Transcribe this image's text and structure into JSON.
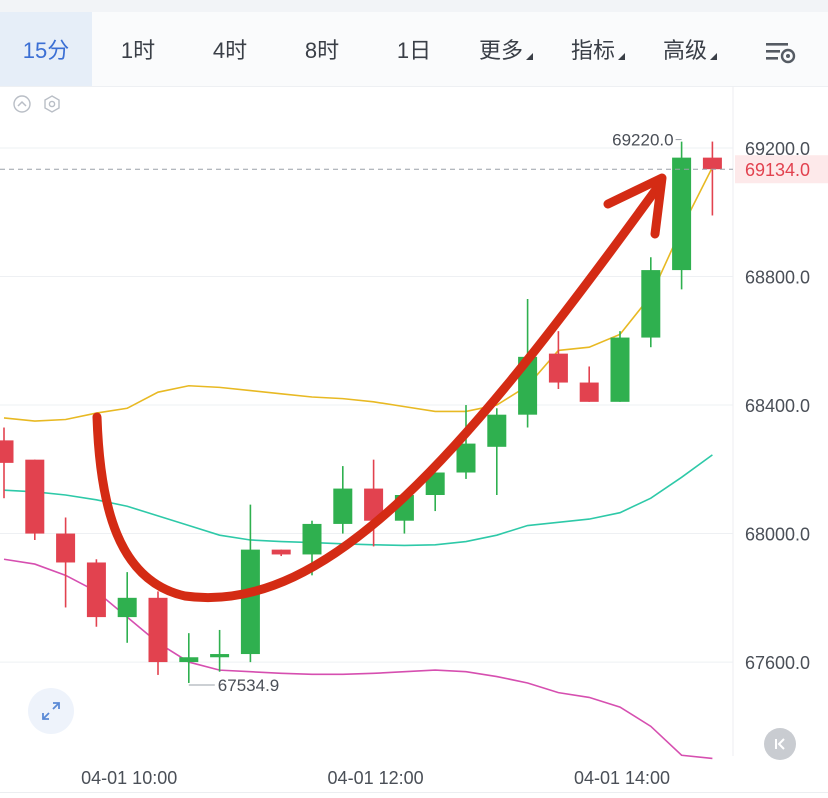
{
  "toolbar": {
    "tabs": [
      {
        "label": "15分",
        "active": true,
        "dropdown": false
      },
      {
        "label": "1时",
        "active": false,
        "dropdown": false
      },
      {
        "label": "4时",
        "active": false,
        "dropdown": false
      },
      {
        "label": "8时",
        "active": false,
        "dropdown": false
      },
      {
        "label": "1日",
        "active": false,
        "dropdown": false
      },
      {
        "label": "更多",
        "active": false,
        "dropdown": true
      },
      {
        "label": "指标",
        "active": false,
        "dropdown": true
      },
      {
        "label": "高级",
        "active": false,
        "dropdown": true
      }
    ],
    "settings_icon": "chart-settings-icon"
  },
  "colors": {
    "accent": "#3b6fd4",
    "up": "#2fb04f",
    "down": "#e2424f",
    "ma_yellow": "#e8b923",
    "ma_teal": "#2ec9a8",
    "ma_pink": "#d64fb0",
    "arrow": "#d42b14",
    "last_price": "#e2424f"
  },
  "chart_data": {
    "type": "candlestick",
    "ylim": [
      67300,
      69420
    ],
    "y_ticks": [
      "69200.0",
      "68800.0",
      "68400.0",
      "68000.0",
      "67600.0"
    ],
    "y_tick_values": [
      69200,
      68800,
      68400,
      68000,
      67600
    ],
    "x_ticks": [
      "04-01 10:00",
      "04-01 12:00",
      "04-01 14:00"
    ],
    "x_tick_index": [
      4,
      12,
      20
    ],
    "candles": [
      {
        "o": 68290,
        "h": 68330,
        "l": 68110,
        "c": 68220
      },
      {
        "o": 68230,
        "h": 68230,
        "l": 67980,
        "c": 68000
      },
      {
        "o": 68000,
        "h": 68050,
        "l": 67770,
        "c": 67910
      },
      {
        "o": 67910,
        "h": 67920,
        "l": 67710,
        "c": 67740
      },
      {
        "o": 67740,
        "h": 67880,
        "l": 67660,
        "c": 67800
      },
      {
        "o": 67800,
        "h": 67820,
        "l": 67560,
        "c": 67600
      },
      {
        "o": 67600,
        "h": 67690,
        "l": 67535,
        "c": 67615
      },
      {
        "o": 67615,
        "h": 67700,
        "l": 67570,
        "c": 67625
      },
      {
        "o": 67625,
        "h": 68090,
        "l": 67600,
        "c": 67950
      },
      {
        "o": 67950,
        "h": 67950,
        "l": 67930,
        "c": 67935
      },
      {
        "o": 67935,
        "h": 68040,
        "l": 67870,
        "c": 68030
      },
      {
        "o": 68030,
        "h": 68210,
        "l": 68000,
        "c": 68140
      },
      {
        "o": 68140,
        "h": 68230,
        "l": 67960,
        "c": 68040
      },
      {
        "o": 68040,
        "h": 68130,
        "l": 68000,
        "c": 68120
      },
      {
        "o": 68120,
        "h": 68190,
        "l": 68070,
        "c": 68190
      },
      {
        "o": 68190,
        "h": 68400,
        "l": 68170,
        "c": 68280
      },
      {
        "o": 68270,
        "h": 68390,
        "l": 68120,
        "c": 68370
      },
      {
        "o": 68370,
        "h": 68730,
        "l": 68330,
        "c": 68550
      },
      {
        "o": 68560,
        "h": 68630,
        "l": 68450,
        "c": 68470
      },
      {
        "o": 68470,
        "h": 68520,
        "l": 68410,
        "c": 68410
      },
      {
        "o": 68410,
        "h": 68630,
        "l": 68410,
        "c": 68610
      },
      {
        "o": 68610,
        "h": 68860,
        "l": 68580,
        "c": 68820
      },
      {
        "o": 68820,
        "h": 69220,
        "l": 68760,
        "c": 69170
      },
      {
        "o": 69170,
        "h": 69220,
        "l": 68990,
        "c": 69134
      }
    ],
    "ma_upper": [
      68360,
      68350,
      68355,
      68375,
      68390,
      68440,
      68460,
      68455,
      68445,
      68435,
      68425,
      68420,
      68410,
      68395,
      68380,
      68380,
      68400,
      68460,
      68570,
      68580,
      68620,
      68740,
      68950,
      69140
    ],
    "ma_middle": [
      68135,
      68130,
      68120,
      68105,
      68085,
      68055,
      68025,
      67995,
      67980,
      67975,
      67972,
      67968,
      67965,
      67963,
      67965,
      67975,
      67995,
      68025,
      68035,
      68045,
      68065,
      68110,
      68175,
      68245
    ],
    "ma_lower": [
      67920,
      67905,
      67870,
      67820,
      67740,
      67660,
      67600,
      67575,
      67570,
      67565,
      67562,
      67562,
      67565,
      67570,
      67575,
      67570,
      67555,
      67535,
      67505,
      67490,
      67460,
      67400,
      67310,
      67300
    ],
    "last_price": "69134.0",
    "last_price_value": 69134,
    "high_label": "69220.0",
    "high_value": 69220,
    "low_label": "67534.9",
    "low_value": 67534.9
  }
}
